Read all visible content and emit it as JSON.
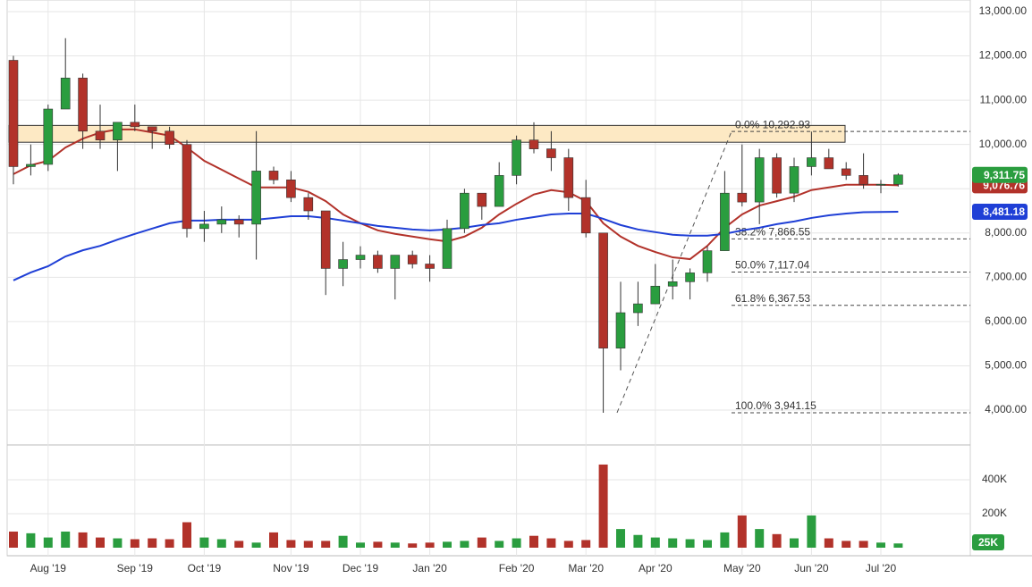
{
  "chart_data": {
    "type": "candlestick",
    "categories": [
      null,
      null,
      "Aug '19",
      null,
      null,
      null,
      null,
      "Sep '19",
      null,
      null,
      null,
      "Oct '19",
      null,
      null,
      null,
      null,
      "Nov '19",
      null,
      null,
      null,
      "Dec '19",
      null,
      null,
      null,
      "Jan '20",
      null,
      null,
      null,
      null,
      "Feb '20",
      null,
      null,
      null,
      "Mar '20",
      null,
      null,
      null,
      "Apr '20",
      null,
      null,
      null,
      null,
      "May '20",
      null,
      null,
      null,
      "Jun '20",
      null,
      null,
      null,
      "Jul '20",
      null
    ],
    "open": [
      11900,
      9500,
      9550,
      10800,
      11500,
      10300,
      10100,
      10500,
      10400,
      10300,
      10000,
      8100,
      8200,
      8300,
      8200,
      9400,
      9200,
      8800,
      8500,
      7200,
      7400,
      7500,
      7200,
      7500,
      7300,
      7200,
      8100,
      8900,
      8600,
      9300,
      10100,
      9900,
      9700,
      8800,
      8000,
      5400,
      6200,
      6400,
      6800,
      6900,
      7100,
      7600,
      8900,
      8700,
      9700,
      8900,
      9500,
      9700,
      9450,
      9300,
      9100,
      9100
    ],
    "high": [
      12000,
      10000,
      10900,
      12400,
      11600,
      10900,
      10400,
      10900,
      10400,
      10400,
      10100,
      8500,
      8600,
      8400,
      10300,
      9500,
      9400,
      8900,
      8500,
      7800,
      7700,
      7600,
      7500,
      7600,
      7500,
      8300,
      9000,
      8900,
      9600,
      10200,
      10500,
      10300,
      9900,
      9200,
      8000,
      6900,
      6900,
      7300,
      7400,
      7200,
      7700,
      9400,
      10000,
      9900,
      9800,
      9700,
      10290,
      9900,
      9600,
      9800,
      9200,
      9350
    ],
    "low": [
      9100,
      9300,
      9400,
      10800,
      9900,
      9900,
      9400,
      10300,
      9900,
      9900,
      7900,
      7800,
      8000,
      7900,
      7400,
      9100,
      8700,
      8300,
      6600,
      6800,
      7200,
      7100,
      6500,
      7200,
      6900,
      7200,
      8000,
      8300,
      8600,
      9100,
      9800,
      9400,
      8500,
      7900,
      3941.15,
      4900,
      5900,
      6400,
      6500,
      6500,
      6900,
      7600,
      8600,
      8200,
      8800,
      8700,
      9300,
      9500,
      9200,
      9000,
      8900,
      9050
    ],
    "close": [
      9500,
      9550,
      10800,
      11500,
      10300,
      10100,
      10500,
      10400,
      10300,
      10000,
      8100,
      8200,
      8300,
      8200,
      9400,
      9200,
      8800,
      8500,
      7200,
      7400,
      7500,
      7200,
      7500,
      7300,
      7200,
      8100,
      8900,
      8600,
      9300,
      10100,
      9900,
      9700,
      8800,
      8000,
      5400,
      6200,
      6400,
      6800,
      6900,
      7100,
      7600,
      8900,
      8700,
      9700,
      8900,
      9500,
      9700,
      9450,
      9300,
      9100,
      9100,
      9311.75
    ],
    "close_last_label": "9,311.75",
    "up_color": "#2a9d3f",
    "down_color": "#b2322a",
    "ylim": [
      3214,
      13262
    ],
    "yticks": [
      {
        "value": 4000,
        "label": "4,000.00"
      },
      {
        "value": 5000,
        "label": "5,000.00"
      },
      {
        "value": 6000,
        "label": "6,000.00"
      },
      {
        "value": 7000,
        "label": "7,000.00"
      },
      {
        "value": 8000,
        "label": "8,000.00"
      },
      {
        "value": 9000,
        "label": "9,000.00"
      },
      {
        "value": 10000,
        "label": "10,000.00"
      },
      {
        "value": 11000,
        "label": "11,000.00"
      },
      {
        "value": 12000,
        "label": "12,000.00"
      },
      {
        "value": 13000,
        "label": "13,000.00"
      }
    ],
    "grid": true,
    "zone": [
      10050,
      10430
    ],
    "zone_color": "#fde9c4",
    "fib_levels": [
      {
        "value": 10292.93,
        "label": "0.0% 10,292.93"
      },
      {
        "value": 7866.55,
        "label": "38.2% 7,866.55"
      },
      {
        "value": 7117.04,
        "label": "50.0% 7,117.04"
      },
      {
        "value": 6367.53,
        "label": "61.8% 6,367.53"
      },
      {
        "value": 3941.15,
        "label": "100.0% 3,941.15"
      }
    ],
    "overlays": [
      {
        "color": "#b2322a",
        "values": [
          9330,
          9530,
          9630,
          9930,
          10130,
          10270,
          10340,
          10340,
          10270,
          10200,
          9930,
          9630,
          9430,
          9230,
          9030,
          9030,
          9030,
          8930,
          8720,
          8420,
          8220,
          8060,
          7980,
          7920,
          7860,
          7810,
          7920,
          8120,
          8420,
          8660,
          8870,
          8970,
          8920,
          8720,
          8220,
          7920,
          7710,
          7570,
          7450,
          7410,
          7710,
          8120,
          8420,
          8620,
          8720,
          8820,
          8970,
          9030,
          9090,
          9090,
          9090,
          9076.76
        ],
        "last_label": "9,076.76"
      },
      {
        "color": "#1f3fd6",
        "values": [
          6930,
          7110,
          7250,
          7470,
          7610,
          7710,
          7850,
          7980,
          8100,
          8220,
          8280,
          8280,
          8300,
          8300,
          8300,
          8340,
          8380,
          8380,
          8340,
          8280,
          8220,
          8160,
          8120,
          8080,
          8060,
          8080,
          8120,
          8180,
          8220,
          8300,
          8360,
          8420,
          8440,
          8440,
          8320,
          8180,
          8080,
          8020,
          7960,
          7940,
          7940,
          7980,
          8060,
          8120,
          8200,
          8260,
          8340,
          8400,
          8440,
          8470,
          8475,
          8481.18
        ],
        "last_label": "8,481.18"
      }
    ],
    "volume": {
      "values": [
        95000,
        85000,
        60000,
        95000,
        90000,
        60000,
        55000,
        50000,
        55000,
        50000,
        150000,
        60000,
        50000,
        40000,
        30000,
        90000,
        45000,
        40000,
        40000,
        70000,
        30000,
        35000,
        30000,
        25000,
        30000,
        35000,
        40000,
        60000,
        40000,
        55000,
        70000,
        55000,
        40000,
        45000,
        490000,
        110000,
        75000,
        60000,
        55000,
        50000,
        45000,
        90000,
        190000,
        110000,
        80000,
        55000,
        190000,
        55000,
        40000,
        40000,
        30000,
        25000
      ],
      "ylim": [
        0,
        595000
      ],
      "yticks": [
        {
          "value": 200000,
          "label": "200K"
        },
        {
          "value": 400000,
          "label": "400K"
        }
      ],
      "last_label": "25K"
    }
  }
}
